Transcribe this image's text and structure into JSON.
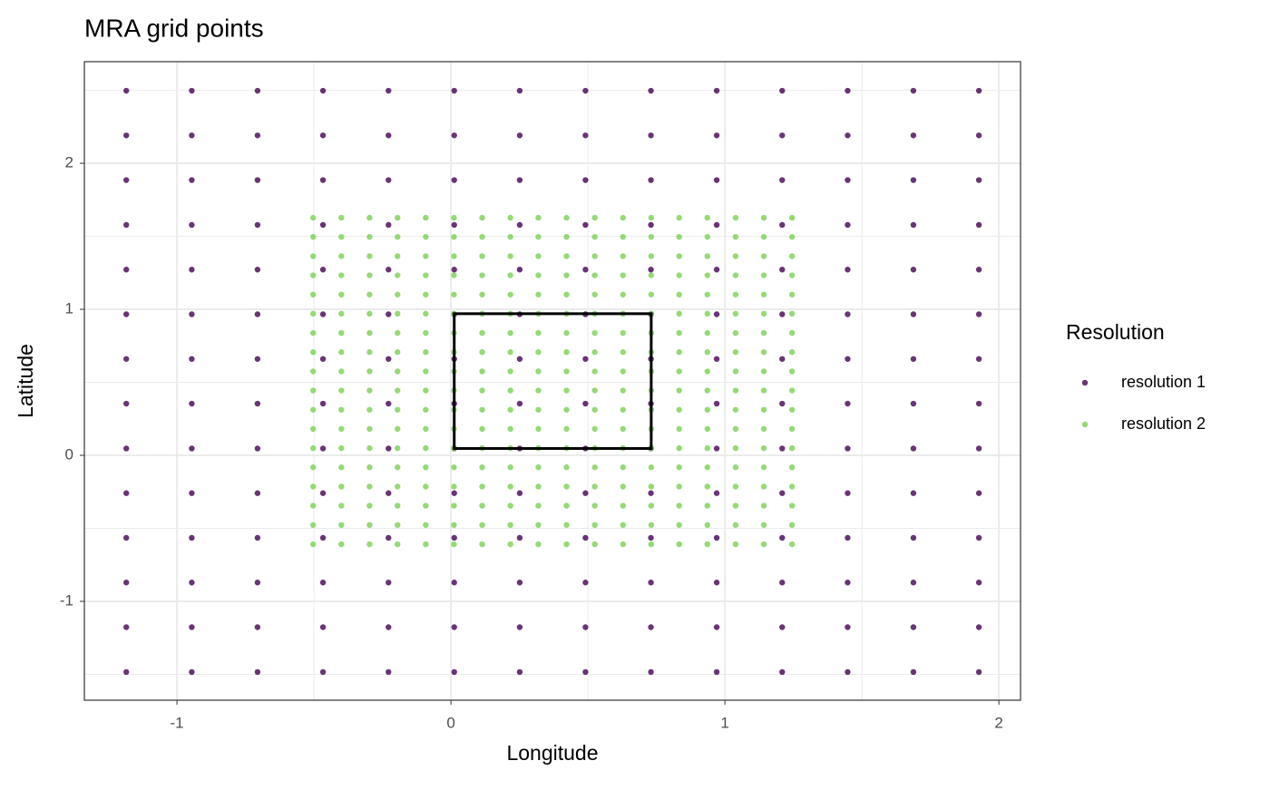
{
  "chart_data": {
    "type": "scatter",
    "title": "MRA grid points",
    "x_label": "Longitude",
    "y_label": "Latitude",
    "legend_title": "Resolution",
    "xlim": [
      -1.338,
      2.079
    ],
    "ylim": [
      -1.677,
      2.696
    ],
    "xticks": [
      -1,
      0,
      1,
      2
    ],
    "yticks": [
      -1,
      0,
      1,
      2
    ],
    "x_minor_grid": [
      -0.5,
      0.5,
      1.5
    ],
    "y_minor_grid": [
      -1.5,
      -0.5,
      0.5,
      1.5,
      2.5
    ],
    "grid": true,
    "series": [
      {
        "name": "resolution 1",
        "color": "#440154",
        "x": [
          -1.185,
          -0.946,
          -0.706,
          -0.467,
          -0.228,
          0.012,
          0.251,
          0.491,
          0.73,
          0.97,
          1.209,
          1.448,
          1.688,
          1.927
        ],
        "y": [
          2.497,
          2.191,
          1.885,
          1.578,
          1.272,
          0.966,
          0.66,
          0.354,
          0.047,
          -0.259,
          -0.565,
          -0.871,
          -1.177,
          -1.484
        ]
      },
      {
        "name": "resolution 2",
        "color": "#7AD151",
        "x": [
          -0.503,
          -0.4,
          -0.297,
          -0.195,
          -0.092,
          0.011,
          0.114,
          0.217,
          0.319,
          0.422,
          0.525,
          0.628,
          0.731,
          0.833,
          0.936,
          1.039,
          1.142,
          1.245
        ],
        "y": [
          1.627,
          1.496,
          1.364,
          1.233,
          1.101,
          0.97,
          0.838,
          0.707,
          0.575,
          0.444,
          0.312,
          0.181,
          0.049,
          -0.082,
          -0.214,
          -0.345,
          -0.477,
          -0.609
        ]
      }
    ],
    "rectangle": {
      "xmin": 0.012,
      "xmax": 0.731,
      "ymin": 0.047,
      "ymax": 0.97
    }
  }
}
